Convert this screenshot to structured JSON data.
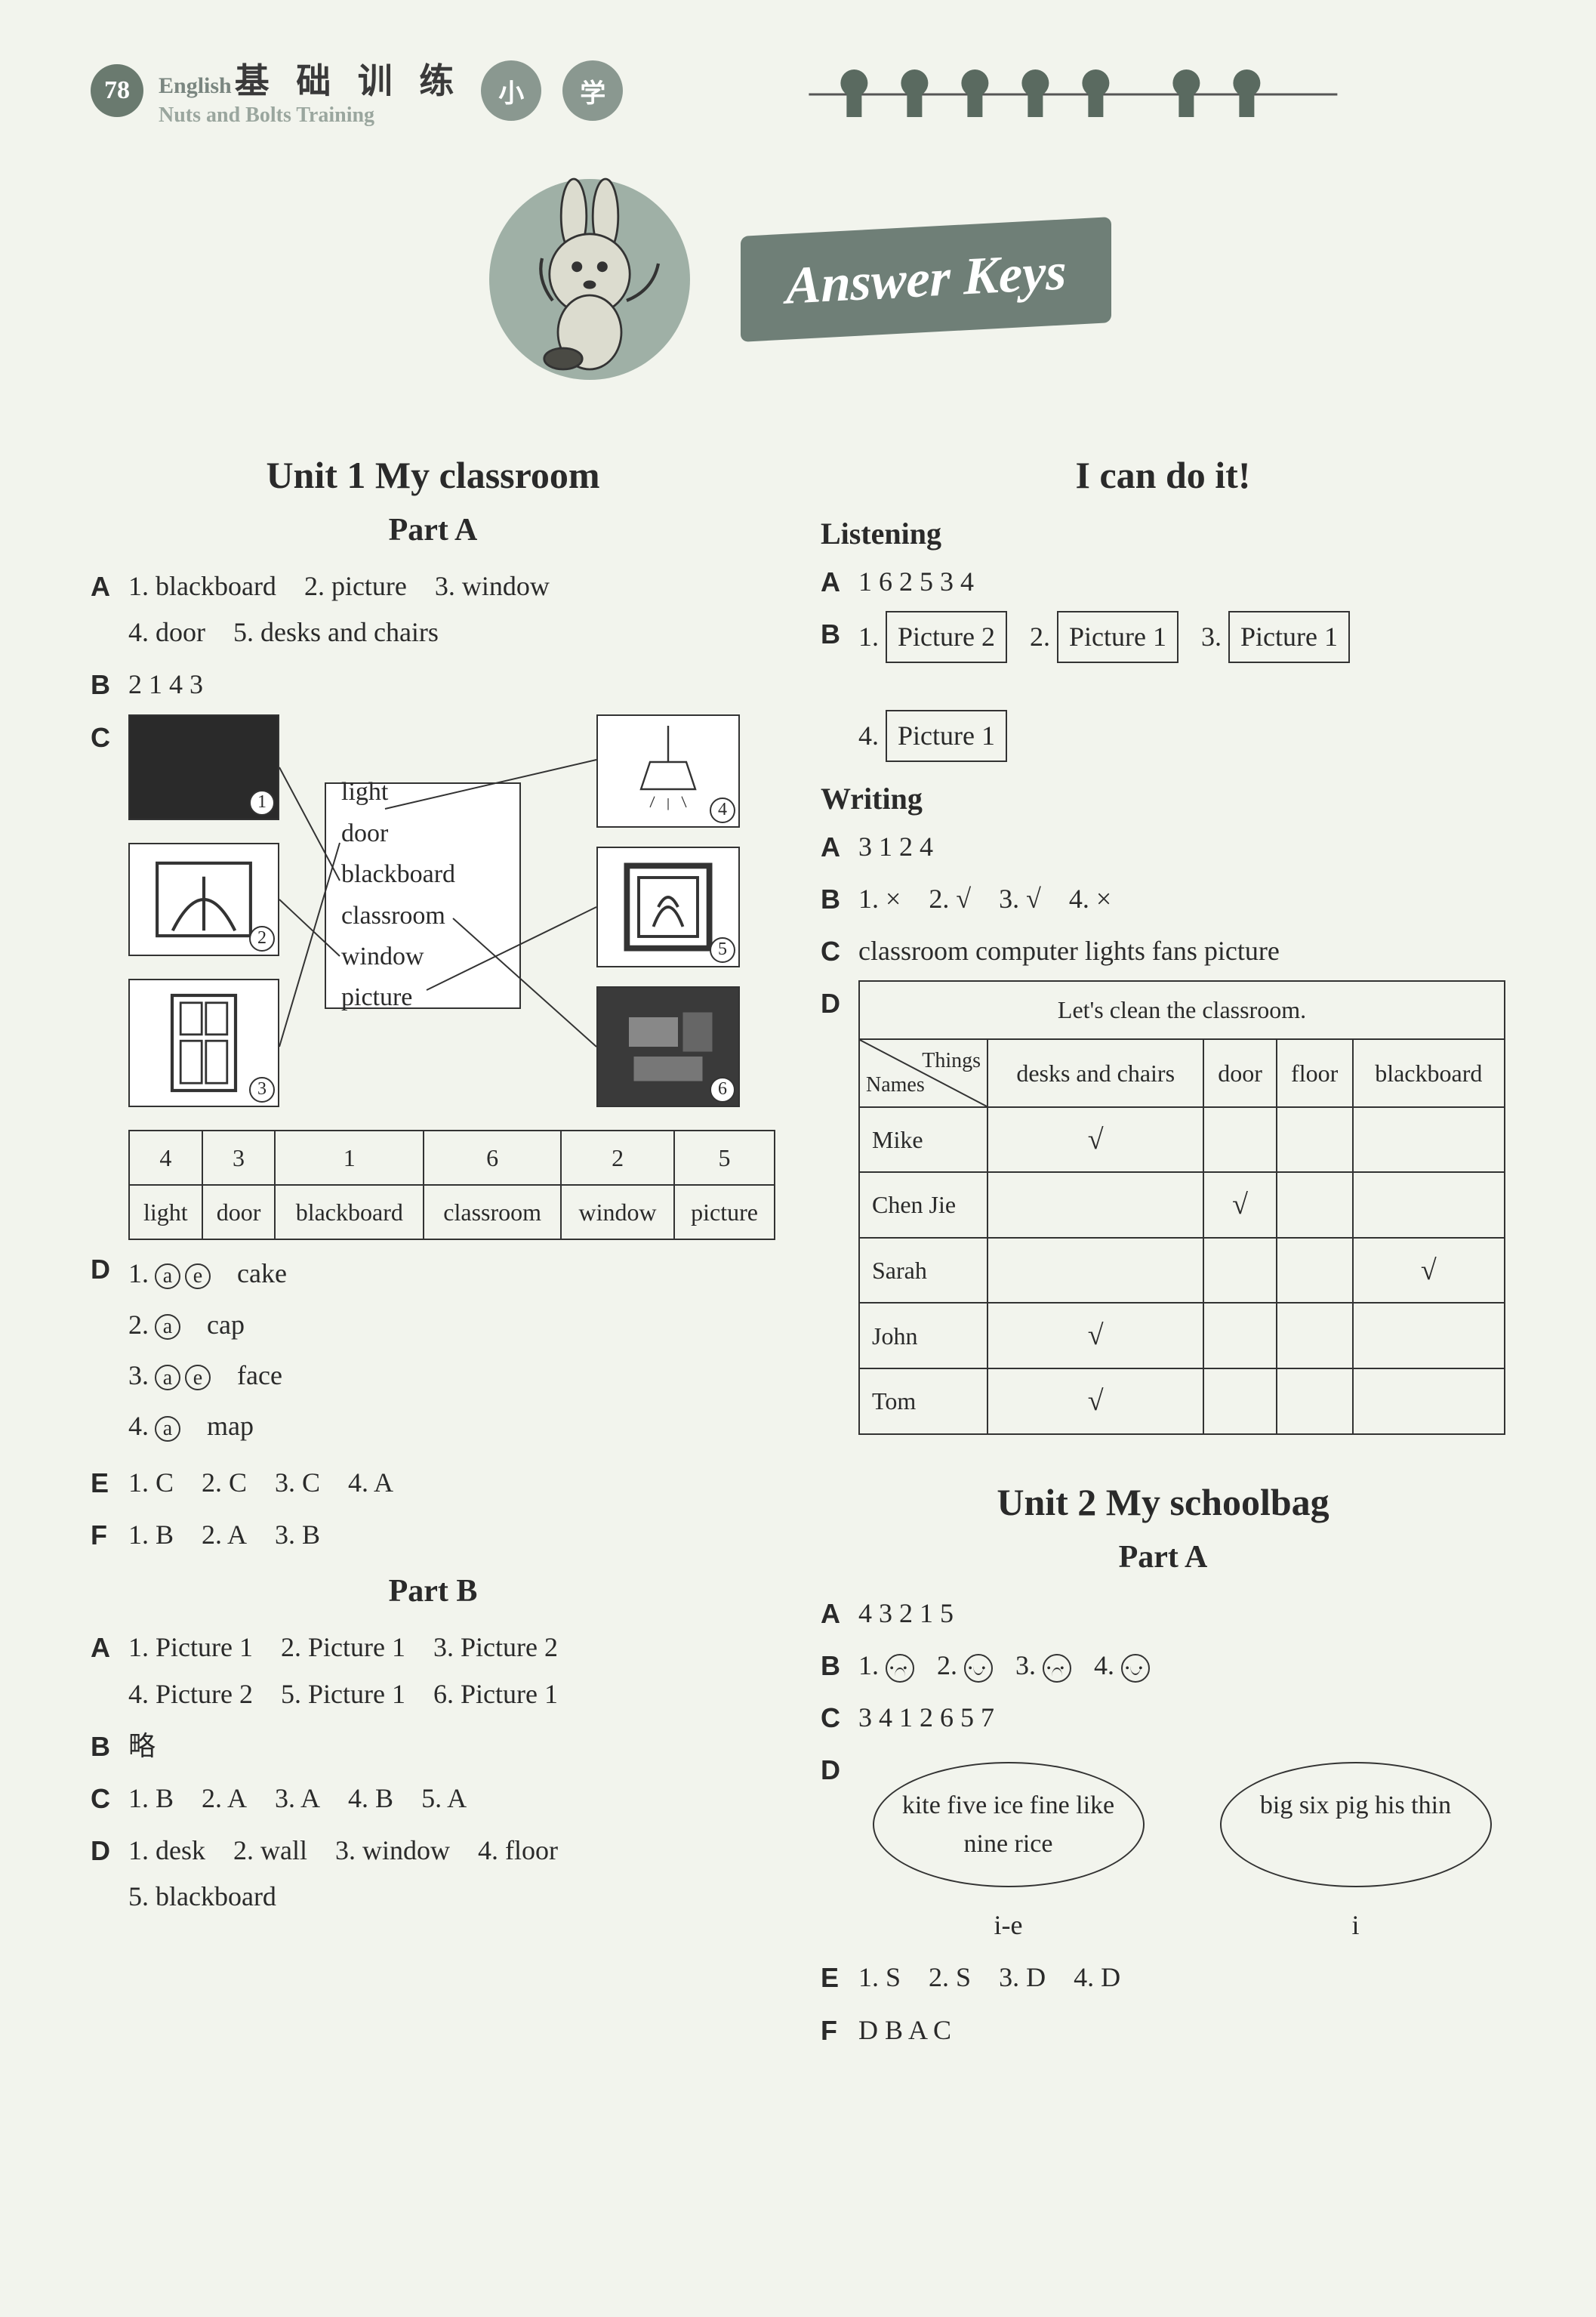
{
  "header": {
    "page_number": "78",
    "title_en": "English",
    "title_cn": "基 础 训 练",
    "subtitle": "Nuts and Bolts Training",
    "badge1": "小",
    "badge2": "学"
  },
  "banner": "Answer Keys",
  "left": {
    "unit_title": "Unit 1    My classroom",
    "partA_title": "Part A",
    "A": [
      "1. blackboard",
      "2. picture",
      "3. window",
      "4. door",
      "5. desks and chairs"
    ],
    "B": "2 1 4 3",
    "C_words": [
      "light",
      "door",
      "blackboard",
      "classroom",
      "window",
      "picture"
    ],
    "C_imglabels": [
      "1",
      "2",
      "3",
      "4",
      "5",
      "6"
    ],
    "C_table": {
      "nums": [
        "4",
        "3",
        "1",
        "6",
        "2",
        "5"
      ],
      "words": [
        "light",
        "door",
        "blackboard",
        "classroom",
        "window",
        "picture"
      ]
    },
    "D": [
      {
        "n": "1.",
        "circ": [
          "a",
          "e"
        ],
        "word": "cake"
      },
      {
        "n": "2.",
        "circ": [
          "a"
        ],
        "word": "cap"
      },
      {
        "n": "3.",
        "circ": [
          "a",
          "e"
        ],
        "word": "face"
      },
      {
        "n": "4.",
        "circ": [
          "a"
        ],
        "word": "map"
      }
    ],
    "E": [
      "1. C",
      "2. C",
      "3. C",
      "4. A"
    ],
    "F": [
      "1. B",
      "2. A",
      "3. B"
    ],
    "partB_title": "Part B",
    "PB_A": [
      "1. Picture 1",
      "2. Picture 1",
      "3. Picture 2",
      "4. Picture 2",
      "5. Picture 1",
      "6. Picture 1"
    ],
    "PB_B": "略",
    "PB_C": [
      "1. B",
      "2. A",
      "3. A",
      "4. B",
      "5. A"
    ],
    "PB_D": [
      "1. desk",
      "2. wall",
      "3. window",
      "4. floor",
      "5. blackboard"
    ]
  },
  "right": {
    "icdi": "I can do it!",
    "listening_title": "Listening",
    "L_A": "1 6 2 5 3 4",
    "L_B": [
      {
        "n": "1.",
        "box": "Picture 2"
      },
      {
        "n": "2.",
        "box": "Picture 1"
      },
      {
        "n": "3.",
        "box": "Picture 1"
      },
      {
        "n": "4.",
        "box": "Picture 1"
      }
    ],
    "writing_title": "Writing",
    "W_A": "3 1 2 4",
    "W_B": [
      "1. ×",
      "2. √",
      "3. √",
      "4. ×"
    ],
    "W_C": "classroom computer lights fans picture",
    "W_D": {
      "caption": "Let's clean the classroom.",
      "diag_top": "Things",
      "diag_bot": "Names",
      "cols": [
        "desks and chairs",
        "door",
        "floor",
        "blackboard"
      ],
      "rows": [
        {
          "name": "Mike",
          "ticks": [
            true,
            false,
            false,
            false
          ]
        },
        {
          "name": "Chen Jie",
          "ticks": [
            false,
            true,
            false,
            false
          ]
        },
        {
          "name": "Sarah",
          "ticks": [
            false,
            false,
            false,
            true
          ]
        },
        {
          "name": "John",
          "ticks": [
            true,
            false,
            false,
            false
          ]
        },
        {
          "name": "Tom",
          "ticks": [
            true,
            false,
            false,
            false
          ]
        }
      ]
    },
    "unit2_title": "Unit 2    My schoolbag",
    "u2_partA": "Part A",
    "U2_A": "4 3 2 1 5",
    "U2_B": [
      {
        "n": "1.",
        "face": "sad"
      },
      {
        "n": "2.",
        "face": "happy"
      },
      {
        "n": "3.",
        "face": "sad"
      },
      {
        "n": "4.",
        "face": "happy"
      }
    ],
    "U2_C": "3 4 1 2 6 5 7",
    "U2_D": {
      "oval1": "kite five ice fine like nine rice",
      "oval2": "big six pig his thin",
      "label1": "i-e",
      "label2": "i"
    },
    "U2_E": [
      "1. S",
      "2. S",
      "3. D",
      "4. D"
    ],
    "U2_F": "D B A C"
  },
  "style": {
    "bg": "#f2f4ed",
    "accent": "#6f7f77",
    "text": "#2a2a2a",
    "border": "#333333"
  }
}
